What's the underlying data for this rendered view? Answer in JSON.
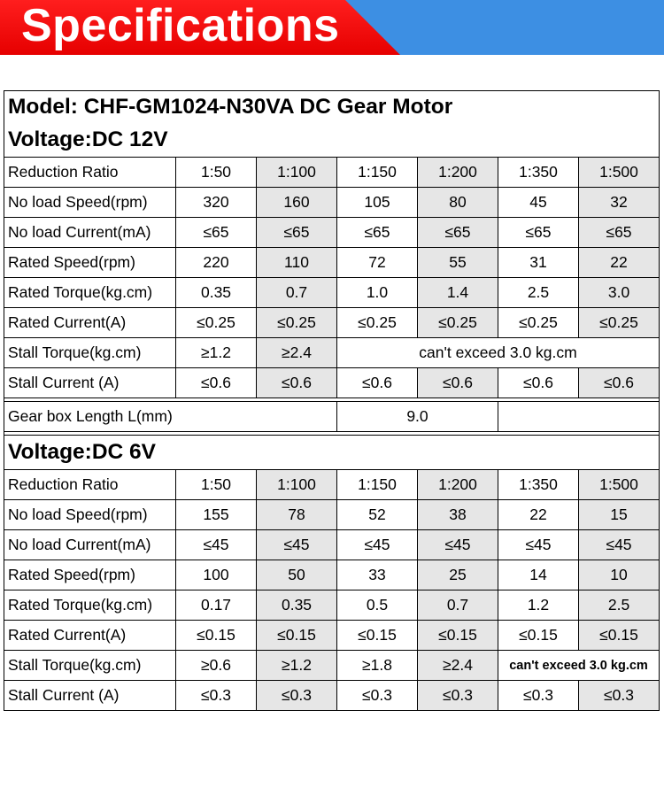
{
  "header": {
    "title": "Specifications"
  },
  "model_title": "Model: CHF-GM1024-N30VA DC Gear Motor",
  "v12": {
    "title": "Voltage:DC 12V",
    "rows": [
      {
        "label": "Reduction Ratio",
        "cells": [
          "1:50",
          "1:100",
          "1:150",
          "1:200",
          "1:350",
          "1:500"
        ]
      },
      {
        "label": "No load Speed(rpm)",
        "cells": [
          "320",
          "160",
          "105",
          "80",
          "45",
          "32"
        ]
      },
      {
        "label": "No load Current(mA)",
        "cells": [
          "≤65",
          "≤65",
          "≤65",
          "≤65",
          "≤65",
          "≤65"
        ]
      },
      {
        "label": "Rated Speed(rpm)",
        "cells": [
          "220",
          "110",
          "72",
          "55",
          "31",
          "22"
        ]
      },
      {
        "label": "Rated Torque(kg.cm)",
        "cells": [
          "0.35",
          "0.7",
          "1.0",
          "1.4",
          "2.5",
          "3.0"
        ]
      },
      {
        "label": "Rated Current(A)",
        "cells": [
          "≤0.25",
          "≤0.25",
          "≤0.25",
          "≤0.25",
          "≤0.25",
          "≤0.25"
        ]
      },
      {
        "label": "Stall Torque(kg.cm)",
        "cells": [
          "≥1.2",
          "≥2.4"
        ],
        "note": "can't exceed 3.0 kg.cm"
      },
      {
        "label": "Stall Current (A)",
        "cells": [
          "≤0.6",
          "≤0.6",
          "≤0.6",
          "≤0.6",
          "≤0.6",
          "≤0.6"
        ]
      }
    ]
  },
  "gearbox": {
    "label": "Gear box Length L(mm)",
    "value": "9.0"
  },
  "v6": {
    "title": "Voltage:DC 6V",
    "rows": [
      {
        "label": "Reduction Ratio",
        "cells": [
          "1:50",
          "1:100",
          "1:150",
          "1:200",
          "1:350",
          "1:500"
        ]
      },
      {
        "label": "No load Speed(rpm)",
        "cells": [
          "155",
          "78",
          "52",
          "38",
          "22",
          "15"
        ]
      },
      {
        "label": "No load Current(mA)",
        "cells": [
          "≤45",
          "≤45",
          "≤45",
          "≤45",
          "≤45",
          "≤45"
        ]
      },
      {
        "label": "Rated Speed(rpm)",
        "cells": [
          "100",
          "50",
          "33",
          "25",
          "14",
          "10"
        ]
      },
      {
        "label": "Rated Torque(kg.cm)",
        "cells": [
          "0.17",
          "0.35",
          "0.5",
          "0.7",
          "1.2",
          "2.5"
        ]
      },
      {
        "label": "Rated Current(A)",
        "cells": [
          "≤0.15",
          "≤0.15",
          "≤0.15",
          "≤0.15",
          "≤0.15",
          "≤0.15"
        ]
      },
      {
        "label": "Stall Torque(kg.cm)",
        "cells": [
          "≥0.6",
          "≥1.2",
          "≥1.8",
          "≥2.4"
        ],
        "note": "can't exceed 3.0 kg.cm"
      },
      {
        "label": "Stall Current (A)",
        "cells": [
          "≤0.3",
          "≤0.3",
          "≤0.3",
          "≤0.3",
          "≤0.3",
          "≤0.3"
        ]
      }
    ]
  }
}
